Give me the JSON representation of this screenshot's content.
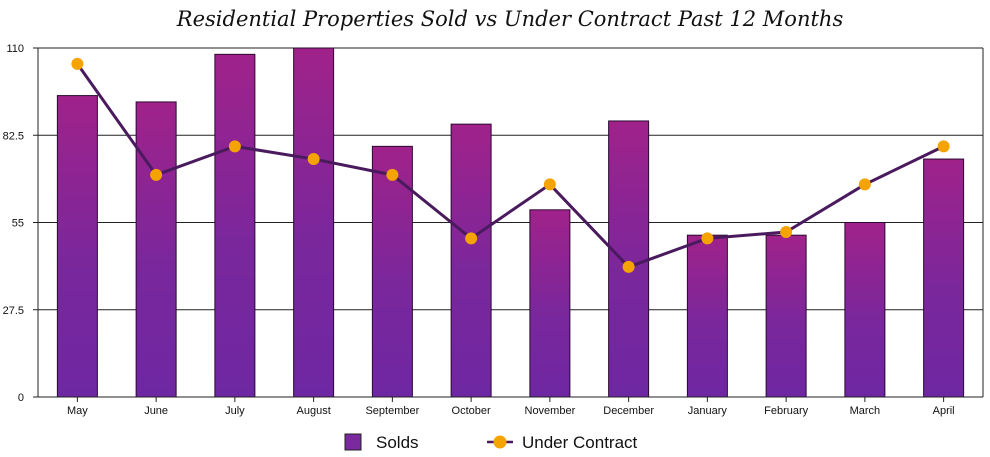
{
  "chart_data": {
    "type": "bar",
    "title": "Residential Properties Sold vs Under Contract Past 12 Months",
    "xlabel": "",
    "ylabel": "",
    "categories": [
      "May",
      "June",
      "July",
      "August",
      "September",
      "October",
      "November",
      "December",
      "January",
      "February",
      "March",
      "April"
    ],
    "ylim": [
      0,
      110
    ],
    "yticks": [
      0,
      27.5,
      55,
      82.5,
      110
    ],
    "ytick_labels": [
      "0",
      "27.5",
      "55",
      "82.5",
      "110"
    ],
    "grid": true,
    "legend_position": "bottom",
    "series": [
      {
        "name": "Solds",
        "type": "bar",
        "color": "#7a2a9e",
        "values": [
          95,
          93,
          108,
          110,
          79,
          86,
          59,
          87,
          51,
          51,
          55,
          75
        ]
      },
      {
        "name": "Under Contract",
        "type": "line",
        "color": "#4a1a5e",
        "marker_color": "#f5a300",
        "values": [
          105,
          70,
          79,
          75,
          70,
          50,
          67,
          41,
          50,
          52,
          67,
          79
        ]
      }
    ]
  }
}
